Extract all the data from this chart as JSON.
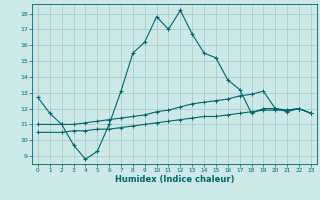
{
  "xlabel": "Humidex (Indice chaleur)",
  "background_color": "#cce8e8",
  "grid_color": "#aacccc",
  "line_color": "#006666",
  "xlim": [
    -0.5,
    23.5
  ],
  "ylim": [
    8.5,
    18.6
  ],
  "yticks": [
    9,
    10,
    11,
    12,
    13,
    14,
    15,
    16,
    17,
    18
  ],
  "xticks": [
    0,
    1,
    2,
    3,
    4,
    5,
    6,
    7,
    8,
    9,
    10,
    11,
    12,
    13,
    14,
    15,
    16,
    17,
    18,
    19,
    20,
    21,
    22,
    23
  ],
  "line1_x": [
    0,
    1,
    2,
    3,
    4,
    5,
    6,
    7,
    8,
    9,
    10,
    11,
    12,
    13,
    14,
    15,
    16,
    17,
    18,
    19,
    20,
    21,
    22,
    23
  ],
  "line1_y": [
    12.7,
    11.7,
    11.0,
    9.7,
    8.8,
    9.3,
    11.0,
    13.1,
    15.5,
    16.2,
    17.8,
    17.0,
    18.2,
    16.7,
    15.5,
    15.2,
    13.8,
    13.2,
    11.7,
    12.0,
    12.0,
    11.8,
    12.0,
    11.7
  ],
  "line2_x": [
    0,
    2,
    3,
    4,
    5,
    6,
    7,
    8,
    9,
    10,
    11,
    12,
    13,
    14,
    15,
    16,
    17,
    18,
    19,
    20,
    21,
    22,
    23
  ],
  "line2_y": [
    11.0,
    11.0,
    11.0,
    11.1,
    11.2,
    11.3,
    11.4,
    11.5,
    11.6,
    11.8,
    11.9,
    12.1,
    12.3,
    12.4,
    12.5,
    12.6,
    12.8,
    12.9,
    13.1,
    12.0,
    11.9,
    12.0,
    11.7
  ],
  "line3_x": [
    0,
    2,
    3,
    4,
    5,
    6,
    7,
    8,
    9,
    10,
    11,
    12,
    13,
    14,
    15,
    16,
    17,
    18,
    19,
    20,
    21,
    22,
    23
  ],
  "line3_y": [
    10.5,
    10.5,
    10.6,
    10.6,
    10.7,
    10.7,
    10.8,
    10.9,
    11.0,
    11.1,
    11.2,
    11.3,
    11.4,
    11.5,
    11.5,
    11.6,
    11.7,
    11.8,
    11.9,
    11.9,
    11.9,
    12.0,
    11.7
  ]
}
